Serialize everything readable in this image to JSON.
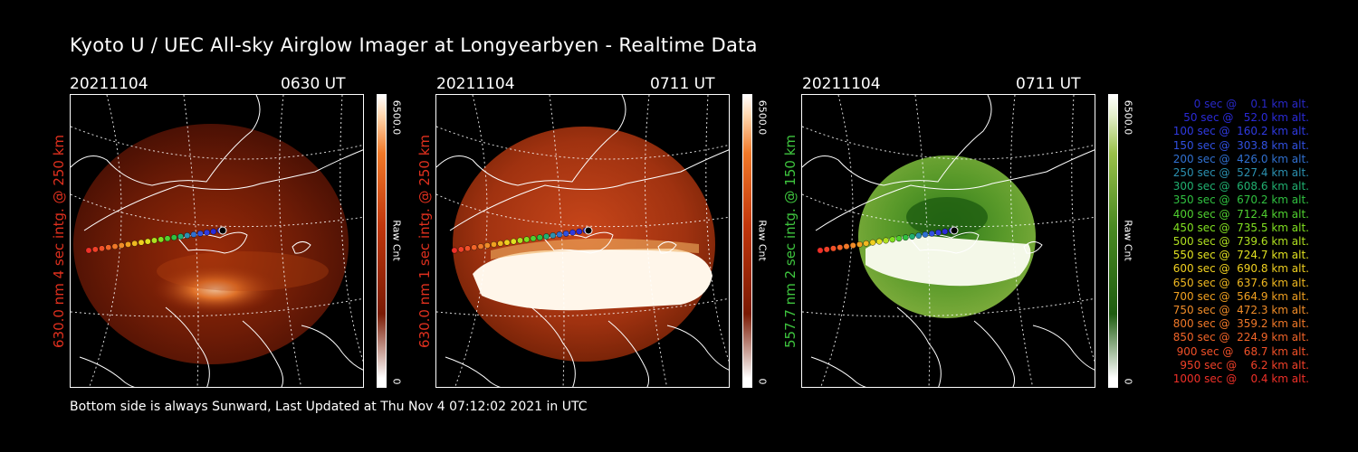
{
  "title": "Kyoto U / UEC All-sky Airglow Imager at Longyearbyen - Realtime Data",
  "footer": "Bottom side is always Sunward, Last Updated at Thu Nov  4 07:12:02 2021 in UTC",
  "panels": [
    {
      "date": "20211104",
      "time": "0630 UT",
      "ylabel": "630.0 nm 4 sec intg. @ 250 km",
      "ylabel_color": "#e0301e",
      "cbar_max": "6500.0",
      "cbar_min": "0",
      "cbar_label": "Raw Cnt",
      "colormap": "red",
      "level": "dim red airglow, bright patch near bottom center"
    },
    {
      "date": "20211104",
      "time": "0711 UT",
      "ylabel": "630.0 nm 1 sec intg. @ 250 km",
      "ylabel_color": "#e0301e",
      "cbar_max": "6500.0",
      "cbar_min": "0",
      "cbar_label": "Raw Cnt",
      "colormap": "red",
      "level": "saturated band in lower half"
    },
    {
      "date": "20211104",
      "time": "0711 UT",
      "ylabel": "557.7 nm 2 sec intg. @ 150 km",
      "ylabel_color": "#3ec43e",
      "cbar_max": "6500.0",
      "cbar_min": "0",
      "cbar_label": "Raw Cnt",
      "colormap": "green",
      "level": "saturated band across center"
    }
  ],
  "legend": [
    {
      "text": "   0 sec @    0.1 km alt.",
      "color": "#2828c8"
    },
    {
      "text": "  50 sec @   52.0 km alt.",
      "color": "#2a2ad8"
    },
    {
      "text": " 100 sec @  160.2 km alt.",
      "color": "#2f3ae0"
    },
    {
      "text": " 150 sec @  303.8 km alt.",
      "color": "#3050e0"
    },
    {
      "text": " 200 sec @  426.0 km alt.",
      "color": "#3070d0"
    },
    {
      "text": " 250 sec @  527.4 km alt.",
      "color": "#2b90b0"
    },
    {
      "text": " 300 sec @  608.6 km alt.",
      "color": "#20b070"
    },
    {
      "text": " 350 sec @  670.2 km alt.",
      "color": "#30c040"
    },
    {
      "text": " 400 sec @  712.4 km alt.",
      "color": "#50d030"
    },
    {
      "text": " 450 sec @  735.5 km alt.",
      "color": "#80e020"
    },
    {
      "text": " 500 sec @  739.6 km alt.",
      "color": "#b0e020"
    },
    {
      "text": " 550 sec @  724.7 km alt.",
      "color": "#e0e020"
    },
    {
      "text": " 600 sec @  690.8 km alt.",
      "color": "#f0d020"
    },
    {
      "text": " 650 sec @  637.6 km alt.",
      "color": "#f0b820"
    },
    {
      "text": " 700 sec @  564.9 km alt.",
      "color": "#f0a020"
    },
    {
      "text": " 750 sec @  472.3 km alt.",
      "color": "#f08c28"
    },
    {
      "text": " 800 sec @  359.2 km alt.",
      "color": "#f07828"
    },
    {
      "text": " 850 sec @  224.9 km alt.",
      "color": "#f06428"
    },
    {
      "text": " 900 sec @   68.7 km alt.",
      "color": "#f05028"
    },
    {
      "text": " 950 sec @    6.2 km alt.",
      "color": "#f04028"
    },
    {
      "text": "1000 sec @    0.4 km alt.",
      "color": "#f03028"
    }
  ]
}
